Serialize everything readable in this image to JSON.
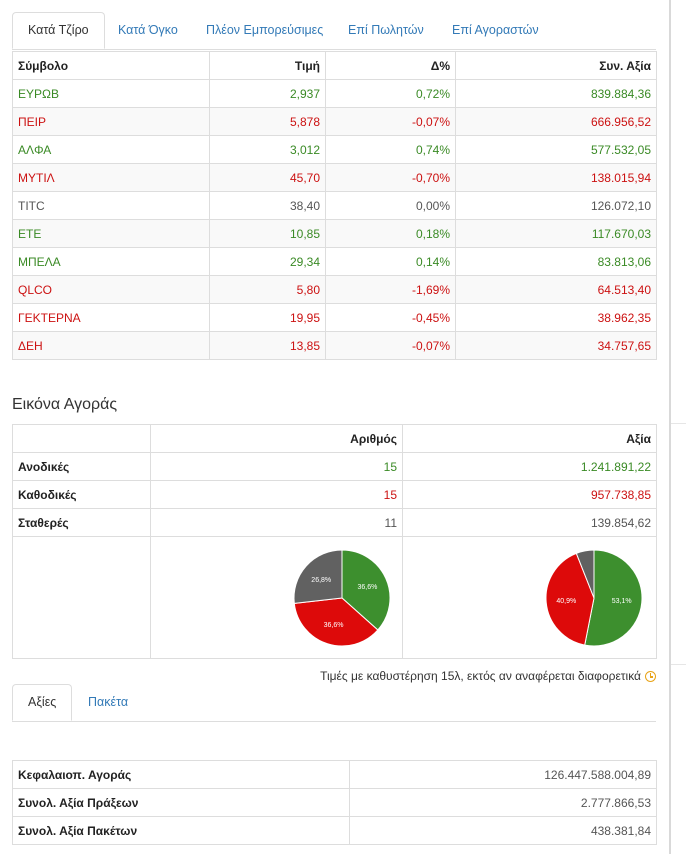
{
  "top_tabs": [
    {
      "label": "Κατά Τζίρο",
      "active": true
    },
    {
      "label": "Κατά Όγκο",
      "active": false
    },
    {
      "label": "Πλέον Εμπορεύσιμες",
      "active": false
    },
    {
      "label": "Επί Πωλητών",
      "active": false
    },
    {
      "label": "Επί Αγοραστών",
      "active": false
    }
  ],
  "stocks_table": {
    "headers": [
      "Σύμβολο",
      "Τιμή",
      "Δ%",
      "Συν. Αξία"
    ],
    "rows": [
      {
        "symbol": "ΕΥΡΩΒ",
        "price": "2,937",
        "change": "0,72%",
        "value": "839.884,36",
        "trend": "up"
      },
      {
        "symbol": "ΠΕΙΡ",
        "price": "5,878",
        "change": "-0,07%",
        "value": "666.956,52",
        "trend": "down"
      },
      {
        "symbol": "ΑΛΦΑ",
        "price": "3,012",
        "change": "0,74%",
        "value": "577.532,05",
        "trend": "up"
      },
      {
        "symbol": "ΜΥΤΙΛ",
        "price": "45,70",
        "change": "-0,70%",
        "value": "138.015,94",
        "trend": "down"
      },
      {
        "symbol": "TITC",
        "price": "38,40",
        "change": "0,00%",
        "value": "126.072,10",
        "trend": "flat"
      },
      {
        "symbol": "ΕΤΕ",
        "price": "10,85",
        "change": "0,18%",
        "value": "117.670,03",
        "trend": "up"
      },
      {
        "symbol": "ΜΠΕΛΑ",
        "price": "29,34",
        "change": "0,14%",
        "value": "83.813,06",
        "trend": "up"
      },
      {
        "symbol": "QLCO",
        "price": "5,80",
        "change": "-1,69%",
        "value": "64.513,40",
        "trend": "down"
      },
      {
        "symbol": "ΓΕΚΤΕΡΝΑ",
        "price": "19,95",
        "change": "-0,45%",
        "value": "38.962,35",
        "trend": "down"
      },
      {
        "symbol": "ΔΕΗ",
        "price": "13,85",
        "change": "-0,07%",
        "value": "34.757,65",
        "trend": "down"
      }
    ]
  },
  "market_overview": {
    "title": "Εικόνα Αγοράς",
    "headers": [
      "",
      "Αριθμός",
      "Αξία"
    ],
    "rows": [
      {
        "label": "Ανοδικές",
        "count": "15",
        "value": "1.241.891,22",
        "trend": "up"
      },
      {
        "label": "Καθοδικές",
        "count": "15",
        "value": "957.738,85",
        "trend": "down"
      },
      {
        "label": "Σταθερές",
        "count": "11",
        "value": "139.854,62",
        "trend": "flat"
      }
    ]
  },
  "chart_data": [
    {
      "type": "pie",
      "categories": [
        "Ανοδικές",
        "Καθοδικές",
        "Σταθερές"
      ],
      "values": [
        36.6,
        36.6,
        26.8
      ],
      "labels": [
        "36,6%",
        "36,6%",
        "26,8%"
      ],
      "colors": [
        "#3d8f2e",
        "#dd0a0a",
        "#616161"
      ]
    },
    {
      "type": "pie",
      "categories": [
        "Ανοδικές",
        "Καθοδικές",
        "Σταθερές"
      ],
      "values": [
        53.1,
        40.9,
        6.0
      ],
      "labels": [
        "53,1%",
        "40,9%",
        ""
      ],
      "colors": [
        "#3d8f2e",
        "#dd0a0a",
        "#616161"
      ]
    }
  ],
  "delay_note": "Τιμές με καθυστέρηση 15λ, εκτός αν αναφέρεται διαφορετικά",
  "bottom_tabs": [
    {
      "label": "Αξίες",
      "active": true
    },
    {
      "label": "Πακέτα",
      "active": false
    }
  ],
  "summary_table": {
    "rows": [
      {
        "label": "Κεφαλαιοπ. Αγοράς",
        "value": "126.447.588.004,89"
      },
      {
        "label": "Συνολ. Αξία Πράξεων",
        "value": "2.777.866,53"
      },
      {
        "label": "Συνολ. Αξία Πακέτων",
        "value": "438.381,84"
      }
    ]
  },
  "colors": {
    "up": "#3a8a25",
    "down": "#cc1111",
    "link": "#337ab7",
    "clock": "#e8a317"
  }
}
